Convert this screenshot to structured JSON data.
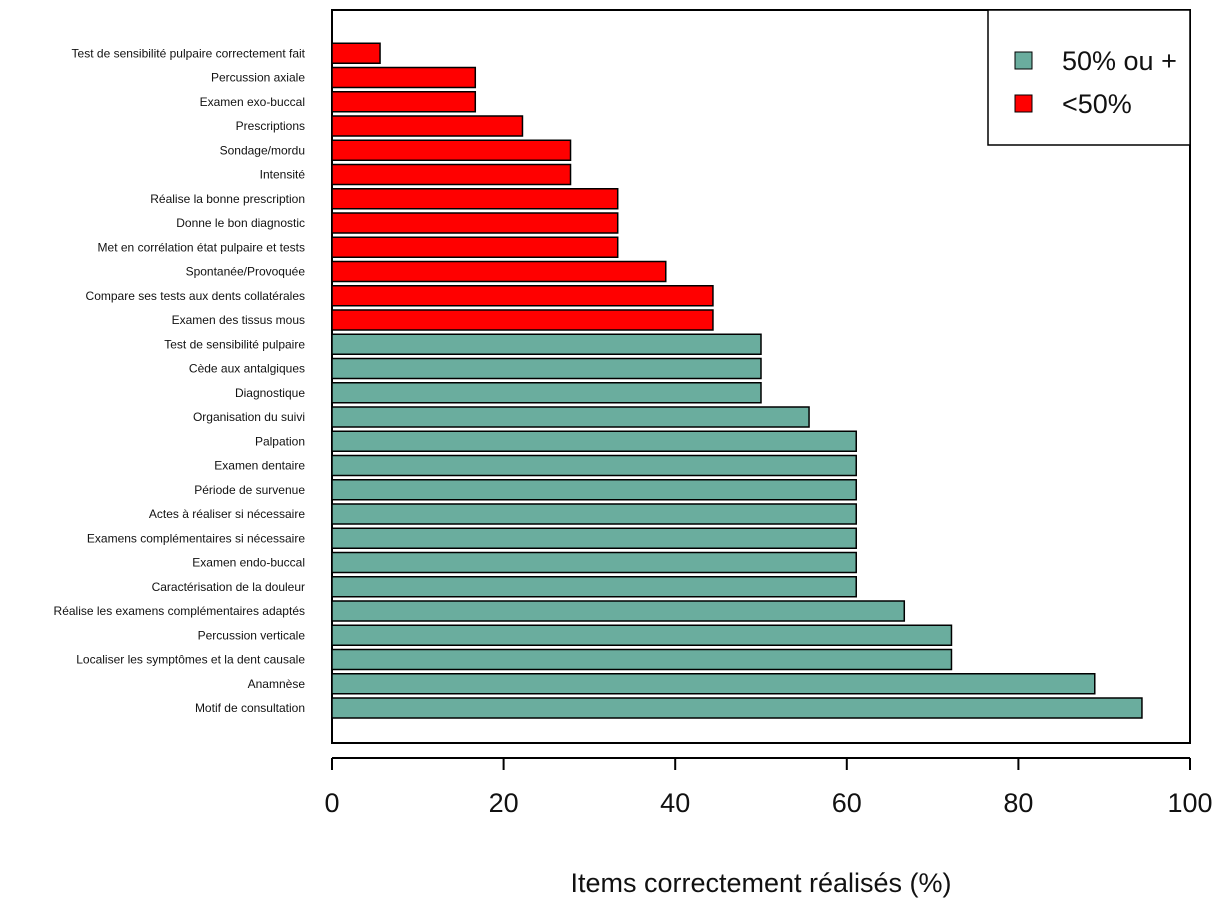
{
  "chart_data": {
    "type": "bar",
    "orientation": "horizontal",
    "categories": [
      "Motif de consultation",
      "Anamnèse",
      "Localiser les symptômes et la dent causale",
      "Percussion verticale",
      "Réalise les examens complémentaires adaptés",
      "Caractérisation de la douleur",
      "Examen endo-buccal",
      "Examens complémentaires si nécessaire",
      "Actes à réaliser si nécessaire",
      "Période de survenue",
      "Examen dentaire",
      "Palpation",
      "Organisation du suivi",
      "Diagnostique",
      "Cède aux antalgiques",
      "Test de sensibilité pulpaire",
      "Examen des tissus mous",
      "Compare ses tests aux dents collatérales",
      "Spontanée/Provoquée",
      "Met en corrélation état pulpaire et tests",
      "Donne le bon diagnostic",
      "Réalise la bonne prescription",
      "Intensité",
      "Sondage/mordu",
      "Prescriptions",
      "Examen exo-buccal",
      "Percussion axiale",
      "Test de sensibilité pulpaire correctement fait"
    ],
    "values": [
      94.4,
      88.9,
      72.2,
      72.2,
      66.7,
      61.1,
      61.1,
      61.1,
      61.1,
      61.1,
      61.1,
      61.1,
      55.6,
      50.0,
      50.0,
      50.0,
      44.4,
      44.4,
      38.9,
      33.3,
      33.3,
      33.3,
      27.8,
      27.8,
      22.2,
      16.7,
      16.7,
      5.6
    ],
    "groups": [
      {
        "name": "50% ou +",
        "color": "#6aad9e"
      },
      {
        "name": "<50%",
        "color": "#ff0000"
      }
    ],
    "threshold": 50,
    "xlim": [
      0,
      100
    ],
    "xticks": [
      "0",
      "20",
      "40",
      "60",
      "80",
      "100"
    ],
    "xlabel": "Items correctement réalisés (%)",
    "ylabel": "",
    "title": "",
    "legend_position": "top-right",
    "grid": false
  }
}
